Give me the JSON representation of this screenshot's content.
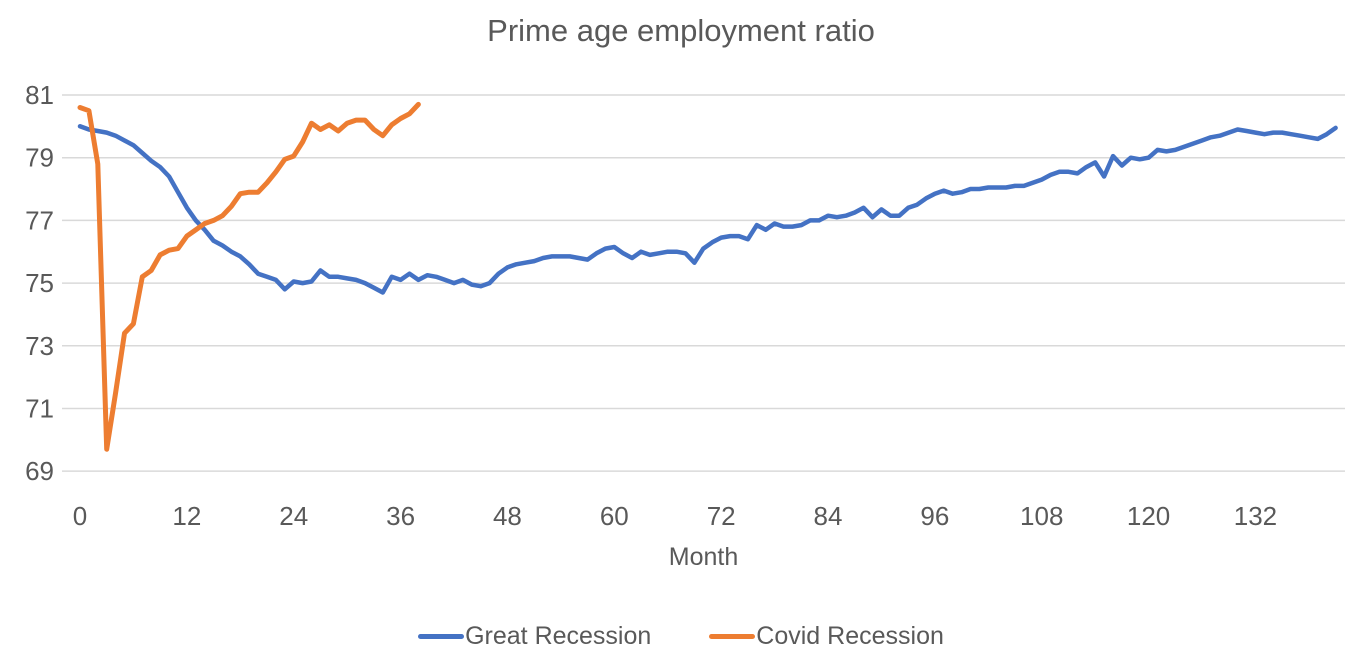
{
  "chart_data": {
    "type": "line",
    "title": "Prime age employment ratio",
    "xlabel": "Month",
    "ylabel": "",
    "xlim": [
      0,
      142
    ],
    "ylim": [
      69,
      81
    ],
    "xticks": [
      0,
      12,
      24,
      36,
      48,
      60,
      72,
      84,
      96,
      108,
      120,
      132
    ],
    "yticks": [
      69,
      71,
      73,
      75,
      77,
      79,
      81
    ],
    "grid": "horizontal",
    "gridline_color": "#d9d9d9",
    "tick_label_color": "#595959",
    "legend_position": "bottom",
    "series": [
      {
        "name": "Great Recession",
        "color": "#4472C4",
        "x_start": 0,
        "values": [
          80.0,
          79.9,
          79.85,
          79.8,
          79.7,
          79.55,
          79.4,
          79.15,
          78.9,
          78.7,
          78.4,
          77.9,
          77.4,
          77.0,
          76.7,
          76.35,
          76.2,
          76.0,
          75.85,
          75.6,
          75.3,
          75.2,
          75.1,
          74.8,
          75.05,
          75.0,
          75.05,
          75.4,
          75.2,
          75.2,
          75.15,
          75.1,
          75.0,
          74.85,
          74.7,
          75.2,
          75.1,
          75.3,
          75.1,
          75.25,
          75.2,
          75.1,
          75.0,
          75.1,
          74.95,
          74.9,
          75.0,
          75.3,
          75.5,
          75.6,
          75.65,
          75.7,
          75.8,
          75.85,
          75.85,
          75.85,
          75.8,
          75.75,
          75.95,
          76.1,
          76.15,
          75.95,
          75.8,
          76.0,
          75.9,
          75.95,
          76.0,
          76.0,
          75.95,
          75.65,
          76.1,
          76.3,
          76.45,
          76.5,
          76.5,
          76.4,
          76.85,
          76.7,
          76.9,
          76.8,
          76.8,
          76.85,
          77.0,
          77.0,
          77.15,
          77.1,
          77.15,
          77.25,
          77.4,
          77.1,
          77.35,
          77.15,
          77.15,
          77.4,
          77.5,
          77.7,
          77.85,
          77.95,
          77.85,
          77.9,
          78.0,
          78.0,
          78.05,
          78.05,
          78.05,
          78.1,
          78.1,
          78.2,
          78.3,
          78.45,
          78.55,
          78.55,
          78.5,
          78.7,
          78.85,
          78.4,
          79.05,
          78.75,
          79.0,
          78.95,
          79.0,
          79.25,
          79.2,
          79.25,
          79.35,
          79.45,
          79.55,
          79.65,
          79.7,
          79.8,
          79.9,
          79.85,
          79.8,
          79.75,
          79.8,
          79.8,
          79.75,
          79.7,
          79.65,
          79.6,
          79.75,
          79.95
        ]
      },
      {
        "name": "Covid Recession",
        "color": "#ED7D31",
        "x_start": 0,
        "values": [
          80.6,
          80.5,
          78.8,
          69.7,
          71.5,
          73.4,
          73.7,
          75.2,
          75.4,
          75.9,
          76.05,
          76.1,
          76.5,
          76.7,
          76.9,
          77.0,
          77.15,
          77.45,
          77.85,
          77.9,
          77.9,
          78.2,
          78.55,
          78.95,
          79.05,
          79.5,
          80.1,
          79.9,
          80.05,
          79.85,
          80.1,
          80.2,
          80.2,
          79.9,
          79.7,
          80.05,
          80.25,
          80.4,
          80.7
        ]
      }
    ]
  }
}
